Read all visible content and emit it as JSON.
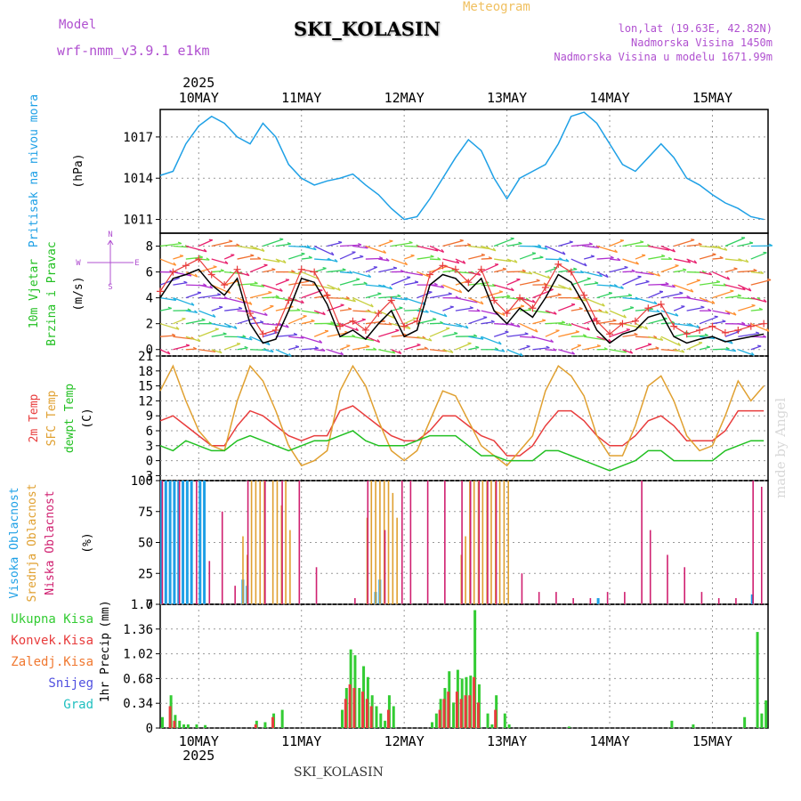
{
  "header": {
    "title": "SKI_KOLASIN",
    "subtitle": "Meteogram",
    "model_label": "Model",
    "model_name": "wrf-nmm_v3.9.1 e1km",
    "location_lines": [
      "lon,lat (19.63E, 42.82N)",
      "Nadmorska Visina 1450m",
      "Nadmorska Visina u modelu 1671.99m"
    ]
  },
  "footer": {
    "station": "SKI_KOLASIN"
  },
  "watermark": "made by Angel",
  "colors": {
    "pressure": "#1ea0e6",
    "temp2m": "#e83c3c",
    "sfc_temp": "#e0a030",
    "dewpoint": "#22c022",
    "wind_speed": "#000000",
    "gust": "#e83c3c",
    "cloud_high": "#1ea0e6",
    "cloud_mid": "#e0a030",
    "cloud_low": "#d02070",
    "precip_total": "#33cc33",
    "precip_conv": "#e83c3c",
    "label_violet": "#b050d0"
  },
  "chart_data": [
    {
      "type": "line",
      "panel": "pressure",
      "ylabel_lines": [
        "Pritisak na nivou mora",
        "(hPa)"
      ],
      "yticks": [
        "1011",
        "1014",
        "1017"
      ],
      "ylim": [
        1010,
        1019
      ],
      "top_date_labels": [
        "10MAY",
        "11MAY",
        "12MAY",
        "13MAY",
        "14MAY",
        "15MAY"
      ],
      "top_year": "2025",
      "x": [
        0,
        3,
        6,
        9,
        12,
        15,
        18,
        21,
        24,
        27,
        30,
        33,
        36,
        39,
        42,
        45,
        48,
        51,
        54,
        57,
        60,
        63,
        66,
        69,
        72,
        75,
        78,
        81,
        84,
        87,
        90,
        93,
        96,
        99,
        102,
        105,
        108,
        111,
        114,
        117,
        120,
        123,
        126,
        129,
        132,
        135,
        138,
        141
      ],
      "values": [
        1014.2,
        1014.5,
        1016.5,
        1017.8,
        1018.5,
        1018.0,
        1017.0,
        1016.5,
        1018.0,
        1017.0,
        1015.0,
        1014.0,
        1013.5,
        1013.8,
        1014.0,
        1014.3,
        1013.5,
        1012.8,
        1011.8,
        1011.0,
        1011.2,
        1012.5,
        1014.0,
        1015.5,
        1016.8,
        1016.0,
        1014.0,
        1012.5,
        1014.0,
        1014.5,
        1015.0,
        1016.5,
        1018.5,
        1018.8,
        1018.0,
        1016.5,
        1015.0,
        1014.5,
        1015.5,
        1016.5,
        1015.5,
        1014.0,
        1013.5,
        1012.8,
        1012.2,
        1011.8,
        1011.2,
        1011.0
      ],
      "grid": true
    },
    {
      "type": "line",
      "panel": "wind",
      "ylabel_lines": [
        "10m Vjetar",
        "Brzina i Pravac",
        "(m/s)"
      ],
      "direction_legend": [
        "N",
        "W",
        "E",
        "S"
      ],
      "yticks": [
        "0",
        "2",
        "4",
        "6",
        "8"
      ],
      "ylim": [
        -0.5,
        9
      ],
      "x": [
        0,
        3,
        6,
        9,
        12,
        15,
        18,
        21,
        24,
        27,
        30,
        33,
        36,
        39,
        42,
        45,
        48,
        51,
        54,
        57,
        60,
        63,
        66,
        69,
        72,
        75,
        78,
        81,
        84,
        87,
        90,
        93,
        96,
        99,
        102,
        105,
        108,
        111,
        114,
        117,
        120,
        123,
        126,
        129,
        132,
        135,
        138,
        141
      ],
      "series": [
        {
          "values": [
            4.0,
            5.5,
            5.8,
            6.2,
            5.0,
            4.2,
            5.5,
            2.0,
            0.5,
            0.8,
            3.0,
            5.5,
            5.2,
            3.5,
            1.0,
            1.5,
            0.8,
            2.0,
            3.0,
            1.0,
            1.5,
            5.0,
            5.8,
            5.5,
            4.5,
            5.5,
            3.0,
            2.0,
            3.2,
            2.5,
            4.0,
            5.8,
            5.2,
            3.5,
            1.5,
            0.5,
            1.2,
            1.5,
            2.5,
            2.8,
            1.0,
            0.5,
            0.8,
            1.0,
            0.6,
            0.8,
            1.0,
            1.2
          ]
        },
        {
          "values": [
            4.5,
            6.0,
            6.5,
            7.0,
            5.8,
            5.0,
            6.2,
            2.8,
            1.2,
            1.5,
            3.8,
            6.2,
            6.0,
            4.2,
            1.8,
            2.2,
            1.5,
            2.8,
            3.8,
            1.8,
            2.2,
            5.8,
            6.5,
            6.2,
            5.2,
            6.2,
            3.8,
            2.8,
            4.0,
            3.2,
            4.8,
            6.6,
            6.0,
            4.2,
            2.2,
            1.2,
            2.0,
            2.2,
            3.2,
            3.5,
            1.8,
            1.2,
            1.5,
            1.8,
            1.3,
            1.5,
            1.8,
            2.0
          ]
        }
      ],
      "wind_arrow_rows": [
        0,
        1,
        2,
        3,
        4,
        5,
        6,
        7,
        8
      ],
      "grid": true
    },
    {
      "type": "line",
      "panel": "temperature",
      "ylabel_lines": [
        "2m Temp",
        "SFC Temp",
        "dewpt Temp",
        "(C)"
      ],
      "yticks": [
        "-3",
        "0",
        "3",
        "6",
        "9",
        "12",
        "15",
        "18",
        "21"
      ],
      "ylim": [
        -4,
        21
      ],
      "x": [
        0,
        3,
        6,
        9,
        12,
        15,
        18,
        21,
        24,
        27,
        30,
        33,
        36,
        39,
        42,
        45,
        48,
        51,
        54,
        57,
        60,
        63,
        66,
        69,
        72,
        75,
        78,
        81,
        84,
        87,
        90,
        93,
        96,
        99,
        102,
        105,
        108,
        111,
        114,
        117,
        120,
        123,
        126,
        129,
        132,
        135,
        138,
        141
      ],
      "series": [
        {
          "name": "2m Temp",
          "values": [
            8,
            9,
            7,
            5,
            3,
            3,
            7,
            10,
            9,
            7,
            5,
            4,
            5,
            5,
            10,
            11,
            9,
            7,
            5,
            4,
            4,
            6,
            9,
            9,
            7,
            5,
            4,
            1,
            1,
            3,
            7,
            10,
            10,
            8,
            5,
            3,
            3,
            5,
            8,
            9,
            7,
            4,
            4,
            4,
            6,
            10,
            10,
            10
          ]
        },
        {
          "name": "SFC Temp",
          "values": [
            14,
            19,
            12,
            6,
            3,
            2,
            12,
            19,
            16,
            10,
            3,
            -1,
            0,
            2,
            14,
            19,
            15,
            8,
            2,
            0,
            2,
            8,
            14,
            13,
            8,
            3,
            1,
            -1,
            2,
            5,
            14,
            19,
            17,
            13,
            5,
            1,
            1,
            7,
            15,
            17,
            12,
            5,
            2,
            3,
            9,
            16,
            12,
            15
          ]
        },
        {
          "name": "dewpt Temp",
          "values": [
            3,
            2,
            4,
            3,
            2,
            2,
            4,
            5,
            4,
            3,
            2,
            3,
            4,
            4,
            5,
            6,
            4,
            3,
            3,
            3,
            4,
            5,
            5,
            5,
            3,
            1,
            1,
            0,
            0,
            0,
            2,
            2,
            1,
            0,
            -1,
            -2,
            -1,
            0,
            2,
            2,
            0,
            0,
            0,
            0,
            2,
            3,
            4,
            4
          ]
        }
      ],
      "grid": true
    },
    {
      "type": "bar",
      "panel": "cloud",
      "ylabel_lines": [
        "Visoka Oblacnost",
        "Srednja Oblacnost",
        "Niska Oblacnost",
        "(%)"
      ],
      "yticks": [
        "0",
        "25",
        "50",
        "75",
        "100"
      ],
      "ylim": [
        0,
        100
      ],
      "series": [
        {
          "name": "Visoka Oblacnost",
          "x": [
            0,
            1,
            2,
            3,
            4,
            5,
            6,
            7,
            9,
            10,
            19,
            20,
            50,
            51,
            102,
            138
          ],
          "values": [
            100,
            100,
            100,
            100,
            100,
            100,
            100,
            100,
            100,
            100,
            20,
            15,
            10,
            20,
            5,
            8
          ]
        },
        {
          "name": "Srednja Oblacnost",
          "x": [
            19,
            20,
            21,
            22,
            23,
            24,
            26,
            27,
            28,
            29,
            30,
            48,
            49,
            50,
            51,
            52,
            53,
            54,
            55,
            70,
            71,
            72,
            73,
            74,
            75,
            76,
            77,
            78,
            79,
            80,
            81
          ],
          "values": [
            55,
            40,
            100,
            100,
            100,
            100,
            100,
            100,
            80,
            100,
            60,
            70,
            100,
            100,
            100,
            100,
            100,
            90,
            70,
            40,
            55,
            100,
            100,
            100,
            100,
            100,
            100,
            100,
            100,
            100,
            100
          ]
        },
        {
          "name": "Niska Oblacnost",
          "x": [
            0,
            4,
            8,
            11,
            14,
            17,
            20,
            24,
            28,
            32,
            36,
            45,
            48,
            52,
            56,
            58,
            62,
            66,
            70,
            72,
            74,
            76,
            78,
            84,
            88,
            92,
            96,
            100,
            104,
            108,
            112,
            114,
            118,
            122,
            126,
            130,
            134,
            138,
            140
          ],
          "values": [
            100,
            100,
            100,
            35,
            75,
            15,
            100,
            100,
            100,
            100,
            30,
            5,
            100,
            60,
            100,
            100,
            100,
            100,
            100,
            100,
            100,
            100,
            100,
            25,
            10,
            10,
            5,
            5,
            10,
            10,
            100,
            60,
            40,
            30,
            10,
            5,
            5,
            100,
            95
          ]
        }
      ],
      "grid": true
    },
    {
      "type": "bar",
      "panel": "precipitation",
      "ylabel_lines": [
        "1hr Precip",
        "(mm)"
      ],
      "legend": [
        "Ukupna Kisa",
        "Konvek.Kisa",
        "Zaledj.Kisa",
        "Snijeg",
        "Grad"
      ],
      "legend_colors": [
        "#33cc33",
        "#e83c3c",
        "#f07830",
        "#5050e0",
        "#20c0c0"
      ],
      "yticks": [
        "0",
        "0.34",
        "0.68",
        "1.02",
        "1.36",
        "1.7"
      ],
      "ylim": [
        0,
        1.7
      ],
      "bottom_date_labels": [
        "10MAY",
        "11MAY",
        "12MAY",
        "13MAY",
        "14MAY",
        "15MAY"
      ],
      "bottom_year": "2025",
      "series": [
        {
          "name": "Ukupna Kisa",
          "x": [
            0,
            2,
            3,
            4,
            5,
            6,
            8,
            10,
            22,
            24,
            26,
            28,
            42,
            43,
            44,
            45,
            46,
            47,
            48,
            49,
            50,
            51,
            52,
            53,
            54,
            63,
            64,
            65,
            66,
            67,
            68,
            69,
            70,
            71,
            72,
            73,
            74,
            76,
            77,
            78,
            80,
            81,
            95,
            119,
            124,
            136,
            139,
            140,
            141
          ],
          "values": [
            0.15,
            0.45,
            0.18,
            0.1,
            0.05,
            0.05,
            0.05,
            0.04,
            0.1,
            0.08,
            0.2,
            0.25,
            0.25,
            0.55,
            1.08,
            1.0,
            0.55,
            0.85,
            0.7,
            0.45,
            0.3,
            0.2,
            0.1,
            0.45,
            0.3,
            0.08,
            0.2,
            0.4,
            0.55,
            0.78,
            0.35,
            0.8,
            0.68,
            0.7,
            0.72,
            1.62,
            0.6,
            0.2,
            0.05,
            0.45,
            0.2,
            0.05,
            0.02,
            0.1,
            0.05,
            0.15,
            1.32,
            0.2,
            0.38
          ]
        },
        {
          "name": "Konvek.Kisa",
          "x": [
            2,
            3,
            22,
            26,
            43,
            44,
            45,
            47,
            48,
            49,
            53,
            65,
            66,
            67,
            69,
            70,
            71,
            72,
            73,
            74,
            78
          ],
          "values": [
            0.3,
            0.1,
            0.05,
            0.15,
            0.4,
            0.6,
            0.55,
            0.5,
            0.4,
            0.3,
            0.25,
            0.25,
            0.4,
            0.5,
            0.5,
            0.4,
            0.45,
            0.45,
            0.7,
            0.35,
            0.25
          ]
        }
      ],
      "grid": true
    }
  ]
}
